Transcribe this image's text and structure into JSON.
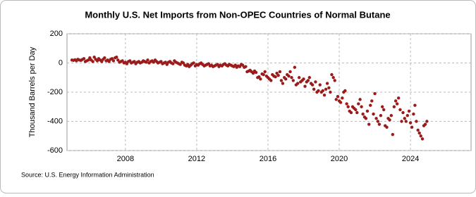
{
  "chart_data": {
    "type": "scatter",
    "title": "Monthly U.S. Net Imports from Non-OPEC Countries of Normal Butane",
    "y_label": "Thousand Barrels per Day",
    "source": "Source: U.S. Energy Information Administration",
    "color": "#9b1b1b",
    "grid": true,
    "xlim": [
      2004.72,
      2027.4
    ],
    "xticks": [
      2008,
      2012,
      2016,
      2020,
      2024
    ],
    "ylim": [
      -600,
      200
    ],
    "yticks": [
      -600,
      -400,
      -200,
      0,
      200
    ],
    "x": [
      2005.0,
      2005.08,
      2005.17,
      2005.25,
      2005.33,
      2005.42,
      2005.5,
      2005.58,
      2005.67,
      2005.75,
      2005.83,
      2005.92,
      2006.0,
      2006.08,
      2006.17,
      2006.25,
      2006.33,
      2006.42,
      2006.5,
      2006.58,
      2006.67,
      2006.75,
      2006.83,
      2006.92,
      2007.0,
      2007.08,
      2007.17,
      2007.25,
      2007.33,
      2007.42,
      2007.5,
      2007.58,
      2007.67,
      2007.75,
      2007.83,
      2007.92,
      2008.0,
      2008.08,
      2008.17,
      2008.25,
      2008.33,
      2008.42,
      2008.5,
      2008.58,
      2008.67,
      2008.75,
      2008.83,
      2008.92,
      2009.0,
      2009.08,
      2009.17,
      2009.25,
      2009.33,
      2009.42,
      2009.5,
      2009.58,
      2009.67,
      2009.75,
      2009.83,
      2009.92,
      2010.0,
      2010.08,
      2010.17,
      2010.25,
      2010.33,
      2010.42,
      2010.5,
      2010.58,
      2010.67,
      2010.75,
      2010.83,
      2010.92,
      2011.0,
      2011.08,
      2011.17,
      2011.25,
      2011.33,
      2011.42,
      2011.5,
      2011.58,
      2011.67,
      2011.75,
      2011.83,
      2011.92,
      2012.0,
      2012.08,
      2012.17,
      2012.25,
      2012.33,
      2012.42,
      2012.5,
      2012.58,
      2012.67,
      2012.75,
      2012.83,
      2012.92,
      2013.0,
      2013.08,
      2013.17,
      2013.25,
      2013.33,
      2013.42,
      2013.5,
      2013.58,
      2013.67,
      2013.75,
      2013.83,
      2013.92,
      2014.0,
      2014.08,
      2014.17,
      2014.25,
      2014.33,
      2014.42,
      2014.5,
      2014.58,
      2014.67,
      2014.75,
      2014.83,
      2014.92,
      2015.0,
      2015.08,
      2015.17,
      2015.25,
      2015.33,
      2015.42,
      2015.5,
      2015.58,
      2015.67,
      2015.75,
      2015.83,
      2015.92,
      2016.0,
      2016.08,
      2016.17,
      2016.25,
      2016.33,
      2016.42,
      2016.5,
      2016.58,
      2016.67,
      2016.75,
      2016.83,
      2016.92,
      2017.0,
      2017.08,
      2017.17,
      2017.25,
      2017.33,
      2017.42,
      2017.5,
      2017.58,
      2017.67,
      2017.75,
      2017.83,
      2017.92,
      2018.0,
      2018.08,
      2018.17,
      2018.25,
      2018.33,
      2018.42,
      2018.5,
      2018.58,
      2018.67,
      2018.75,
      2018.83,
      2018.92,
      2019.0,
      2019.08,
      2019.17,
      2019.25,
      2019.33,
      2019.42,
      2019.5,
      2019.58,
      2019.67,
      2019.75,
      2019.83,
      2019.92,
      2020.0,
      2020.08,
      2020.17,
      2020.25,
      2020.33,
      2020.42,
      2020.5,
      2020.58,
      2020.67,
      2020.75,
      2020.83,
      2020.92,
      2021.0,
      2021.08,
      2021.17,
      2021.25,
      2021.33,
      2021.42,
      2021.5,
      2021.58,
      2021.67,
      2021.75,
      2021.83,
      2021.92,
      2022.0,
      2022.08,
      2022.17,
      2022.25,
      2022.33,
      2022.42,
      2022.5,
      2022.58,
      2022.67,
      2022.75,
      2022.83,
      2022.92,
      2023.0,
      2023.08,
      2023.17,
      2023.25,
      2023.33,
      2023.42,
      2023.5,
      2023.58,
      2023.67,
      2023.75,
      2023.83,
      2023.92,
      2024.0,
      2024.08,
      2024.17,
      2024.25,
      2024.33,
      2024.42,
      2024.5,
      2024.58,
      2024.67,
      2024.75,
      2024.83,
      2024.92
    ],
    "values": [
      20,
      18,
      22,
      15,
      25,
      20,
      18,
      24,
      30,
      10,
      15,
      20,
      35,
      20,
      10,
      40,
      25,
      15,
      30,
      20,
      10,
      25,
      35,
      15,
      20,
      10,
      25,
      30,
      15,
      35,
      40,
      20,
      5,
      10,
      15,
      0,
      5,
      -5,
      10,
      15,
      0,
      5,
      10,
      -5,
      5,
      10,
      0,
      5,
      15,
      10,
      5,
      20,
      0,
      10,
      15,
      5,
      20,
      10,
      0,
      5,
      10,
      -5,
      0,
      5,
      -10,
      5,
      10,
      0,
      -5,
      15,
      5,
      0,
      -5,
      -10,
      5,
      0,
      -15,
      -20,
      -10,
      -25,
      -15,
      -5,
      0,
      -20,
      -10,
      -15,
      -5,
      0,
      -10,
      -20,
      -15,
      -10,
      -5,
      -20,
      -15,
      -25,
      -20,
      -15,
      -10,
      -25,
      -15,
      -20,
      -10,
      -5,
      -15,
      -20,
      -10,
      -15,
      -20,
      -25,
      -15,
      -30,
      -20,
      -25,
      -10,
      -15,
      -30,
      -25,
      -60,
      -55,
      -50,
      -60,
      -70,
      -55,
      -65,
      -100,
      -95,
      -110,
      -75,
      -80,
      -60,
      -90,
      -100,
      -110,
      -120,
      -80,
      -90,
      -95,
      -70,
      -85,
      -60,
      -120,
      -140,
      -100,
      -110,
      -80,
      -90,
      -60,
      -100,
      -120,
      -30,
      -150,
      -140,
      -100,
      -130,
      -120,
      -110,
      -160,
      -130,
      -120,
      -100,
      -140,
      -150,
      -180,
      -130,
      -200,
      -190,
      -150,
      -200,
      -190,
      -220,
      -180,
      -140,
      -170,
      -200,
      -80,
      -100,
      -120,
      -250,
      -230,
      -260,
      -270,
      -240,
      -200,
      -190,
      -280,
      -300,
      -330,
      -340,
      -300,
      -310,
      -320,
      -340,
      -280,
      -250,
      -300,
      -350,
      -370,
      -380,
      -330,
      -420,
      -290,
      -260,
      -350,
      -210,
      -380,
      -400,
      -420,
      -360,
      -300,
      -320,
      -430,
      -440,
      -380,
      -390,
      -360,
      -490,
      -300,
      -260,
      -280,
      -240,
      -320,
      -400,
      -340,
      -380,
      -400,
      -360,
      -330,
      -410,
      -440,
      -350,
      -290,
      -400,
      -460,
      -480,
      -500,
      -520,
      -430,
      -420,
      -400
    ]
  }
}
